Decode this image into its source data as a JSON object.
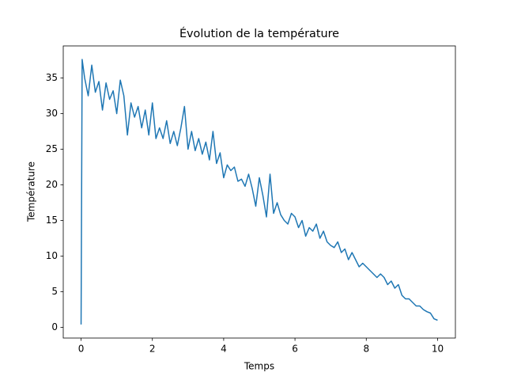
{
  "chart_data": {
    "type": "line",
    "title": "Évolution de la température",
    "x_label": "Temps",
    "y_label": "Température",
    "xlim": [
      -0.5,
      10.5
    ],
    "ylim": [
      -1.5,
      39.5
    ],
    "xticks": [
      0,
      2,
      4,
      6,
      8,
      10
    ],
    "yticks": [
      0,
      5,
      10,
      15,
      20,
      25,
      30,
      35
    ],
    "series": [
      {
        "color": "#1f77b4",
        "x": [
          0,
          0.03,
          0.1,
          0.2,
          0.3,
          0.4,
          0.5,
          0.6,
          0.7,
          0.8,
          0.9,
          1.0,
          1.1,
          1.2,
          1.3,
          1.4,
          1.5,
          1.6,
          1.7,
          1.8,
          1.9,
          2.0,
          2.1,
          2.2,
          2.3,
          2.4,
          2.5,
          2.6,
          2.7,
          2.8,
          2.9,
          3.0,
          3.1,
          3.2,
          3.3,
          3.4,
          3.5,
          3.6,
          3.7,
          3.8,
          3.9,
          4.0,
          4.1,
          4.2,
          4.3,
          4.4,
          4.5,
          4.6,
          4.7,
          4.8,
          4.9,
          5.0,
          5.1,
          5.2,
          5.3,
          5.4,
          5.5,
          5.6,
          5.7,
          5.8,
          5.9,
          6.0,
          6.1,
          6.2,
          6.3,
          6.4,
          6.5,
          6.6,
          6.7,
          6.8,
          6.9,
          7.0,
          7.1,
          7.2,
          7.3,
          7.4,
          7.5,
          7.6,
          7.7,
          7.8,
          7.9,
          8.0,
          8.1,
          8.2,
          8.3,
          8.4,
          8.5,
          8.6,
          8.7,
          8.8,
          8.9,
          9.0,
          9.1,
          9.2,
          9.3,
          9.4,
          9.5,
          9.6,
          9.7,
          9.8,
          9.9,
          10.0
        ],
        "values": [
          0.4,
          37.6,
          35,
          32.5,
          36.8,
          33,
          34.5,
          30.5,
          34.3,
          32,
          33.2,
          30,
          34.7,
          32.5,
          27,
          31.5,
          29.5,
          31,
          28,
          30.5,
          27,
          31.5,
          26.5,
          28,
          26.5,
          29,
          25.8,
          27.5,
          25.5,
          28,
          31,
          25,
          27.5,
          24.8,
          26.5,
          24.3,
          26,
          23.5,
          27.5,
          23,
          24.5,
          21,
          22.8,
          22,
          22.5,
          20.5,
          20.8,
          19.8,
          21.5,
          19.5,
          17,
          21,
          18.5,
          15.5,
          21.5,
          16,
          17.5,
          15.8,
          15,
          14.5,
          16,
          15.5,
          14,
          15,
          12.8,
          14,
          13.5,
          14.5,
          12.5,
          13.5,
          12,
          11.5,
          11.2,
          12,
          10.5,
          11,
          9.5,
          10.5,
          9.5,
          8.5,
          9,
          8.5,
          8,
          7.5,
          7,
          7.5,
          7,
          6,
          6.5,
          5.5,
          6,
          4.5,
          4,
          4,
          3.5,
          3,
          3,
          2.5,
          2.2,
          2,
          1.2,
          1.0
        ]
      }
    ]
  }
}
